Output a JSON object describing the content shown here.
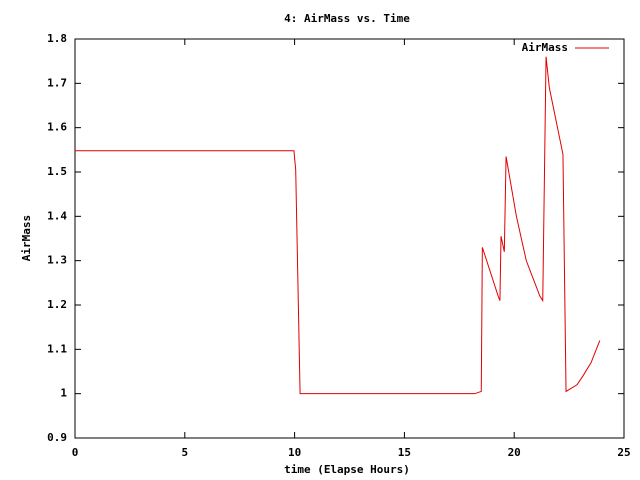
{
  "chart_data": {
    "type": "line",
    "title": "4: AirMass vs. Time",
    "x_label": "time (Elapse Hours)",
    "y_label": "AirMass",
    "x": [
      0,
      9.97,
      10.05,
      10.25,
      18.2,
      18.5,
      18.55,
      19.27,
      19.35,
      19.4,
      19.55,
      19.63,
      20.1,
      20.55,
      21.17,
      21.3,
      21.45,
      21.6,
      22.22,
      22.36,
      22.86,
      23.13,
      23.5,
      23.9
    ],
    "series": [
      {
        "name": "AirMass",
        "color": "#e00000",
        "values": [
          1.548,
          1.548,
          1.505,
          1.0,
          1.0,
          1.005,
          1.33,
          1.22,
          1.21,
          1.355,
          1.32,
          1.535,
          1.4,
          1.3,
          1.22,
          1.21,
          1.76,
          1.69,
          1.54,
          1.005,
          1.02,
          1.04,
          1.07,
          1.12
        ]
      }
    ],
    "xlim": [
      0,
      25
    ],
    "xticks": [
      0,
      5,
      10,
      15,
      20,
      25
    ],
    "ylim": [
      0.9,
      1.8
    ],
    "yticks": [
      0.9,
      1,
      1.1,
      1.2,
      1.3,
      1.4,
      1.5,
      1.6,
      1.7,
      1.8
    ],
    "grid": false,
    "legend": "top-right"
  }
}
